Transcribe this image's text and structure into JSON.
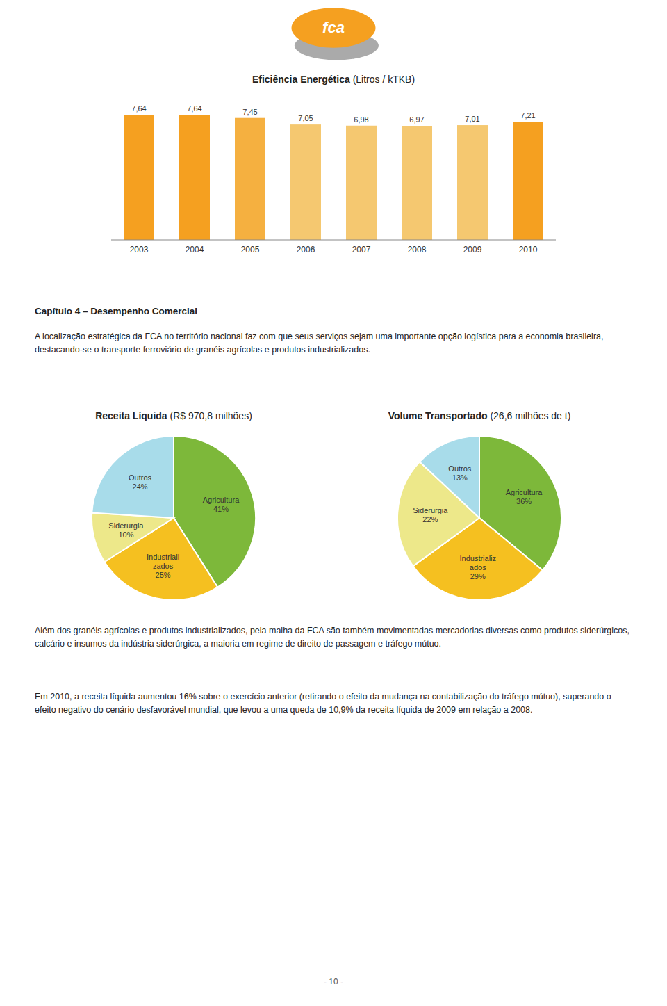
{
  "chart_data": [
    {
      "type": "bar",
      "title": "Eficiência Energética",
      "subtitle": "(Litros / kTKB)",
      "categories": [
        "2003",
        "2004",
        "2005",
        "2006",
        "2007",
        "2008",
        "2009",
        "2010"
      ],
      "values": [
        7.64,
        7.64,
        7.45,
        7.05,
        6.98,
        6.97,
        7.01,
        7.21
      ],
      "value_labels": [
        "7,64",
        "7,64",
        "7,45",
        "7,05",
        "6,98",
        "6,97",
        "7,01",
        "7,21"
      ],
      "colors": [
        "#F5A020",
        "#F5A020",
        "#F5B040",
        "#F5C870",
        "#F5C870",
        "#F5C870",
        "#F5C870",
        "#F5A020"
      ],
      "ylim": [
        0,
        8.5
      ],
      "tick_labels": "x",
      "data_labels": true,
      "grid": false
    },
    {
      "type": "pie",
      "title": "Receita Líquida",
      "subtitle": "(R$ 970,8 milhões)",
      "categories": [
        "Agricultura",
        "Industriali\nzados",
        "Siderurgia",
        "Outros"
      ],
      "values": [
        41,
        25,
        10,
        24
      ],
      "value_labels": [
        "41%",
        "25%",
        "10%",
        "24%"
      ],
      "colors": [
        "#7DB83A",
        "#F5C020",
        "#EDE88A",
        "#A8DCEA"
      ],
      "data_labels": true
    },
    {
      "type": "pie",
      "title": "Volume Transportado",
      "subtitle": "(26,6 milhões de t)",
      "categories": [
        "Agricultura",
        "Industrializ\nados",
        "Siderurgia",
        "Outros"
      ],
      "values": [
        36,
        29,
        22,
        13
      ],
      "value_labels": [
        "36%",
        "29%",
        "22%",
        "13%"
      ],
      "colors": [
        "#7DB83A",
        "#F5C020",
        "#EDE88A",
        "#A8DCEA"
      ],
      "data_labels": true
    }
  ],
  "logo_text": "fca",
  "chapter_title": "Capítulo 4 – Desempenho Comercial",
  "paragraphs": [
    "A localização estratégica da FCA no território nacional faz com que seus serviços sejam uma importante opção logística para a economia brasileira, destacando-se o transporte ferroviário de granéis agrícolas e produtos industrializados.",
    "Além dos granéis agrícolas e produtos industrializados, pela malha da FCA são também movimentadas mercadorias diversas como produtos siderúrgicos, calcário e insumos da indústria siderúrgica, a maioria em regime de direito de passagem e tráfego mútuo.",
    "Em 2010, a receita líquida aumentou 16% sobre o exercício anterior (retirando o efeito da mudança na contabilização do tráfego mútuo), superando o efeito negativo do cenário desfavorável mundial, que levou a uma queda de 10,9% da receita líquida de 2009 em relação a 2008."
  ],
  "page_number": "- 10 -"
}
